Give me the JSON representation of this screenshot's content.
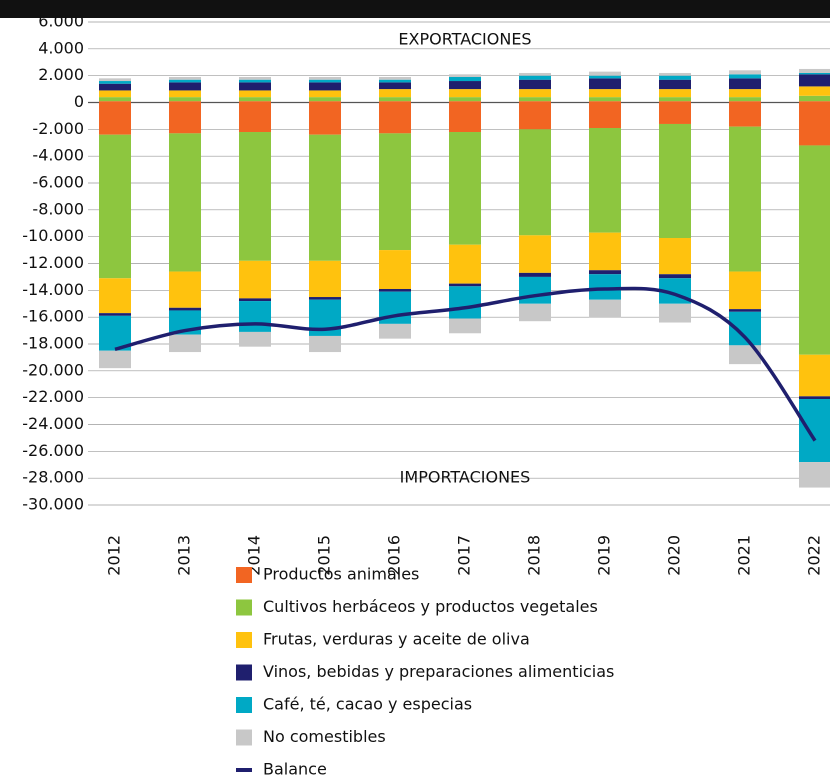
{
  "chart_data": {
    "type": "bar",
    "stacked": true,
    "annotations": [
      "EXPORTACIONES",
      "IMPORTACIONES"
    ],
    "categories": [
      "2012",
      "2013",
      "2014",
      "2015",
      "2016",
      "2017",
      "2018",
      "2019",
      "2020",
      "2021",
      "2022"
    ],
    "ylim": [
      -30000,
      6000
    ],
    "yticks": [
      {
        "value": 6000,
        "label": "6.000"
      },
      {
        "value": 4000,
        "label": "4.000"
      },
      {
        "value": 2000,
        "label": "2.000"
      },
      0,
      {
        "value": -2000,
        "label": "-2.000"
      },
      {
        "value": -4000,
        "label": "-4.000"
      },
      {
        "value": -6000,
        "label": "-6.000"
      },
      {
        "value": -8000,
        "label": "-8.000"
      },
      {
        "value": -10000,
        "label": "-10.000"
      },
      {
        "value": -12000,
        "label": "-12.000"
      },
      {
        "value": -14000,
        "label": "-14.000"
      },
      {
        "value": -16000,
        "label": "-16.000"
      },
      {
        "value": -18000,
        "label": "-18.000"
      },
      {
        "value": -20000,
        "label": "-20.000"
      },
      {
        "value": -22000,
        "label": "-22.000"
      },
      {
        "value": -24000,
        "label": "-24.000"
      },
      {
        "value": -26000,
        "label": "-26.000"
      },
      {
        "value": -28000,
        "label": "-28.000"
      },
      {
        "value": -30000,
        "label": "-30.000"
      }
    ],
    "grid": true,
    "series": [
      {
        "name": "Productos animales",
        "color": "#f26522",
        "exports": [
          100,
          100,
          100,
          100,
          100,
          100,
          100,
          100,
          100,
          100,
          100
        ],
        "imports": [
          -2400,
          -2300,
          -2200,
          -2400,
          -2300,
          -2200,
          -2000,
          -1900,
          -1600,
          -1800,
          -3200
        ]
      },
      {
        "name": "Cultivos herbáceos y productos vegetales",
        "color": "#8dc63f",
        "exports": [
          300,
          300,
          300,
          300,
          300,
          300,
          300,
          300,
          300,
          300,
          400
        ],
        "imports": [
          -10700,
          -10300,
          -9600,
          -9400,
          -8700,
          -8400,
          -7900,
          -7800,
          -8500,
          -10800,
          -15600
        ]
      },
      {
        "name": "Frutas, verduras y aceite de oliva",
        "color": "#ffc20e",
        "exports": [
          500,
          500,
          500,
          500,
          600,
          600,
          600,
          600,
          600,
          600,
          700
        ],
        "imports": [
          -2600,
          -2700,
          -2800,
          -2700,
          -2900,
          -2900,
          -2800,
          -2800,
          -2700,
          -2800,
          -3100
        ]
      },
      {
        "name": "Vinos, bebidas y preparaciones alimenticias",
        "color": "#1f1f6e",
        "exports": [
          500,
          600,
          600,
          600,
          500,
          600,
          700,
          800,
          700,
          800,
          900
        ],
        "imports": [
          -200,
          -200,
          -200,
          -200,
          -200,
          -200,
          -300,
          -300,
          -300,
          -200,
          -200
        ]
      },
      {
        "name": "Café, té, cacao y especias",
        "color": "#00a9c5",
        "exports": [
          200,
          200,
          200,
          200,
          200,
          300,
          300,
          200,
          300,
          300,
          100
        ],
        "imports": [
          -2600,
          -1800,
          -2300,
          -2700,
          -2400,
          -2400,
          -2000,
          -1900,
          -1900,
          -2500,
          -4700
        ]
      },
      {
        "name": "No comestibles",
        "color": "#c8c8c8",
        "exports": [
          200,
          200,
          200,
          200,
          200,
          200,
          200,
          300,
          200,
          300,
          300
        ],
        "imports": [
          -1300,
          -1300,
          -1100,
          -1200,
          -1100,
          -1100,
          -1300,
          -1300,
          -1400,
          -1400,
          -1900
        ]
      }
    ],
    "line": {
      "name": "Balance",
      "color": "#1f1f6e",
      "values": [
        -18400,
        -17000,
        -16500,
        -16900,
        -15900,
        -15300,
        -14400,
        -13900,
        -14300,
        -17500,
        -25200
      ]
    }
  }
}
